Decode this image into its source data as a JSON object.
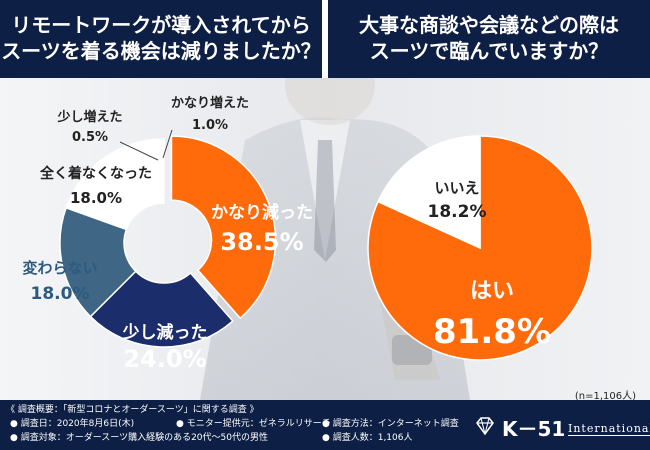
{
  "headers": {
    "left": [
      "リモートワークが導入されてから",
      "スーツを着る機会は減りましたか？"
    ],
    "right": [
      "大事な商談や会議などの際は",
      "スーツで臨んでいますか？"
    ]
  },
  "chart_data": [
    {
      "type": "pie",
      "variant": "donut",
      "title": "リモートワークが導入されてからスーツを着る機会は減りましたか？",
      "categories": [
        "かなり減った",
        "少し減った",
        "変わらない",
        "全く着なくなった",
        "少し増えた",
        "かなり増えた"
      ],
      "values": [
        38.5,
        24.0,
        18.0,
        18.0,
        0.5,
        1.0
      ],
      "value_labels": [
        "38.5%",
        "24.0%",
        "18.0%",
        "18.0%",
        "0.5%",
        "1.0%"
      ],
      "colors": [
        "#ff6a0a",
        "#1b2d6b",
        "#3f6685",
        "#ffffff",
        "#ffffff",
        "#ffffff"
      ]
    },
    {
      "type": "pie",
      "title": "大事な商談や会議などの際はスーツで臨んでいますか？",
      "categories": [
        "はい",
        "いいえ"
      ],
      "values": [
        81.8,
        18.2
      ],
      "value_labels": [
        "81.8%",
        "18.2%"
      ],
      "colors": [
        "#ff6a0a",
        "#ffffff"
      ]
    }
  ],
  "note": "(n=1,106人)",
  "footer": {
    "title": "《 調査概要：「新型コロナとオーダースーツ」に関する調査 》",
    "items": [
      "● 調査日：2020年8月6日(木)",
      "● モニター提供元：ゼネラルリサーチ",
      "● 調査方法：インターネット調査",
      "● 調査対象：オーダースーツ購入経験のある20代〜50代の男性",
      "● 調査人数：1,106人"
    ]
  },
  "logo": {
    "name": "K－51",
    "sub": "International"
  },
  "colors": {
    "navy": "#0e1f45",
    "orange": "#ff6a0a",
    "dark_blue": "#1b2d6b",
    "steel_blue": "#3f6685"
  }
}
